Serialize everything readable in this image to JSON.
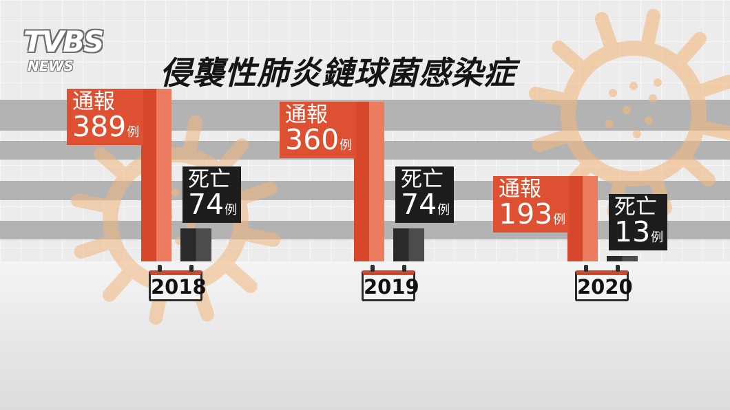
{
  "logo": {
    "main": "TVBS",
    "sub": "NEWS"
  },
  "title": "侵襲性肺炎鏈球菌感染症",
  "colors": {
    "reported": "#dd5032",
    "deaths": "#1d1d1d",
    "virus_icon": "#f2b77f"
  },
  "decorations": [
    "virus-icon",
    "virus-icon"
  ],
  "chart_data": {
    "type": "bar",
    "categories": [
      "2018",
      "2019",
      "2020"
    ],
    "series": [
      {
        "name": "通報",
        "values": [
          389,
          360,
          193
        ]
      },
      {
        "name": "死亡",
        "values": [
          74,
          74,
          13
        ]
      }
    ],
    "unit": "例",
    "title": "侵襲性肺炎鏈球菌感染症",
    "xlabel": "",
    "ylabel": "",
    "grid": false,
    "ylim": [
      0,
      400
    ]
  }
}
